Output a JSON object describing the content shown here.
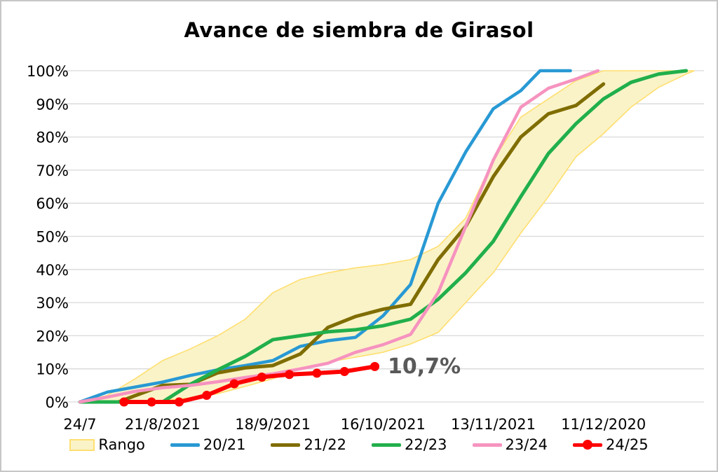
{
  "title": "Avance de siembra de Girasol",
  "annotation": {
    "text": "10,7%",
    "color": "#595959"
  },
  "colors": {
    "grid": "#d9d9d9",
    "axis_text": "#000000",
    "band_fill": "#faf3c8",
    "band_edge": "#ffdf70",
    "frame_border": "#c6c6c6"
  },
  "chart_data": {
    "type": "line",
    "title": "Avance de siembra de Girasol",
    "xlabel": "",
    "ylabel": "",
    "ylim": [
      0,
      100
    ],
    "grid": true,
    "legend_position": "bottom",
    "y_tick_labels": [
      "0%",
      "10%",
      "20%",
      "30%",
      "40%",
      "50%",
      "60%",
      "70%",
      "80%",
      "90%",
      "100%"
    ],
    "x_ticks": [
      {
        "pos": 0,
        "label": "24/7"
      },
      {
        "pos": 3,
        "label": "21/8/2021"
      },
      {
        "pos": 7,
        "label": "18/9/2021"
      },
      {
        "pos": 11,
        "label": "16/10/2021"
      },
      {
        "pos": 15,
        "label": "13/11/2021"
      },
      {
        "pos": 19,
        "label": "11/12/2020"
      }
    ],
    "band": {
      "name": "Rango",
      "fill": "#faf3c8",
      "edge": "#ffdf70",
      "upper": [
        [
          0,
          0
        ],
        [
          1,
          2
        ],
        [
          2,
          7
        ],
        [
          3,
          12.5
        ],
        [
          4,
          16
        ],
        [
          5,
          20
        ],
        [
          6,
          25
        ],
        [
          7,
          33
        ],
        [
          8,
          37
        ],
        [
          9,
          39
        ],
        [
          10,
          40.5
        ],
        [
          11,
          41.5
        ],
        [
          12,
          43
        ],
        [
          13,
          47
        ],
        [
          14,
          55.5
        ],
        [
          15,
          73
        ],
        [
          16,
          86
        ],
        [
          17,
          91.5
        ],
        [
          18,
          97
        ],
        [
          19,
          100
        ],
        [
          22.3,
          100
        ]
      ],
      "lower": [
        [
          0,
          0
        ],
        [
          2,
          0
        ],
        [
          3,
          0.5
        ],
        [
          4,
          1.2
        ],
        [
          5,
          2.5
        ],
        [
          6,
          4.7
        ],
        [
          7,
          7
        ],
        [
          8,
          10
        ],
        [
          9,
          12
        ],
        [
          10,
          13.5
        ],
        [
          11,
          15
        ],
        [
          12,
          17.5
        ],
        [
          13,
          21
        ],
        [
          14,
          30
        ],
        [
          15,
          39
        ],
        [
          16,
          51
        ],
        [
          17,
          62
        ],
        [
          18,
          74
        ],
        [
          19,
          81
        ],
        [
          20,
          89
        ],
        [
          21,
          95
        ],
        [
          22,
          99
        ],
        [
          22.3,
          100
        ]
      ]
    },
    "series": [
      {
        "name": "20/21",
        "color": "#2899d4",
        "width": 4.5,
        "markers": false,
        "points": [
          [
            0,
            0
          ],
          [
            1,
            3
          ],
          [
            2,
            4.5
          ],
          [
            3,
            6
          ],
          [
            4,
            8
          ],
          [
            5,
            9.7
          ],
          [
            6,
            11
          ],
          [
            7,
            12.5
          ],
          [
            8,
            16.8
          ],
          [
            9,
            18.5
          ],
          [
            10,
            19.5
          ],
          [
            11,
            26
          ],
          [
            12,
            35.5
          ],
          [
            13,
            60
          ],
          [
            14,
            75.5
          ],
          [
            15,
            88.5
          ],
          [
            16,
            94
          ],
          [
            16.7,
            100
          ],
          [
            17.8,
            100
          ]
        ]
      },
      {
        "name": "21/22",
        "color": "#7f6d00",
        "width": 5,
        "markers": false,
        "points": [
          [
            1.4,
            0
          ],
          [
            2,
            1.9
          ],
          [
            3,
            5
          ],
          [
            4,
            5.3
          ],
          [
            5,
            8.8
          ],
          [
            6,
            10.3
          ],
          [
            7,
            11
          ],
          [
            8,
            14.5
          ],
          [
            9,
            22.5
          ],
          [
            10,
            25.8
          ],
          [
            11,
            28
          ],
          [
            12,
            29.5
          ],
          [
            13,
            43
          ],
          [
            14,
            53
          ],
          [
            15,
            68
          ],
          [
            16,
            80
          ],
          [
            17,
            87
          ],
          [
            18,
            89.5
          ],
          [
            19,
            96
          ]
        ]
      },
      {
        "name": "22/23",
        "color": "#21af4b",
        "width": 5,
        "markers": false,
        "points": [
          [
            0,
            0
          ],
          [
            3,
            0
          ],
          [
            4,
            5.3
          ],
          [
            5,
            9.7
          ],
          [
            6,
            13.8
          ],
          [
            7,
            18.8
          ],
          [
            8,
            20
          ],
          [
            9,
            21.2
          ],
          [
            10,
            21.8
          ],
          [
            11,
            23
          ],
          [
            12,
            25
          ],
          [
            13,
            31
          ],
          [
            14,
            39
          ],
          [
            15,
            48.5
          ],
          [
            16,
            62
          ],
          [
            17,
            75
          ],
          [
            18,
            84
          ],
          [
            19,
            91.5
          ],
          [
            20,
            96.5
          ],
          [
            21,
            99
          ],
          [
            22,
            100
          ]
        ]
      },
      {
        "name": "23/24",
        "color": "#f693bf",
        "width": 4.5,
        "markers": false,
        "points": [
          [
            0,
            0
          ],
          [
            1,
            1.5
          ],
          [
            2,
            3.2
          ],
          [
            3,
            4.3
          ],
          [
            4,
            5
          ],
          [
            5,
            6.1
          ],
          [
            6,
            7.4
          ],
          [
            7,
            8.5
          ],
          [
            8,
            10
          ],
          [
            9,
            11.7
          ],
          [
            10,
            15
          ],
          [
            11,
            17.3
          ],
          [
            12,
            20.4
          ],
          [
            13,
            33
          ],
          [
            14,
            53
          ],
          [
            15,
            73
          ],
          [
            16,
            89
          ],
          [
            17,
            94.7
          ],
          [
            18,
            97.5
          ],
          [
            18.8,
            100
          ]
        ]
      },
      {
        "name": "24/25",
        "color": "#fe0000",
        "width": 6,
        "markers": true,
        "points": [
          [
            1.6,
            0
          ],
          [
            2.6,
            0
          ],
          [
            3.6,
            0
          ],
          [
            4.6,
            2
          ],
          [
            5.6,
            5.5
          ],
          [
            6.6,
            7.5
          ],
          [
            7.6,
            8.3
          ],
          [
            8.6,
            8.7
          ],
          [
            9.6,
            9.2
          ],
          [
            10.7,
            10.7
          ]
        ]
      }
    ]
  }
}
